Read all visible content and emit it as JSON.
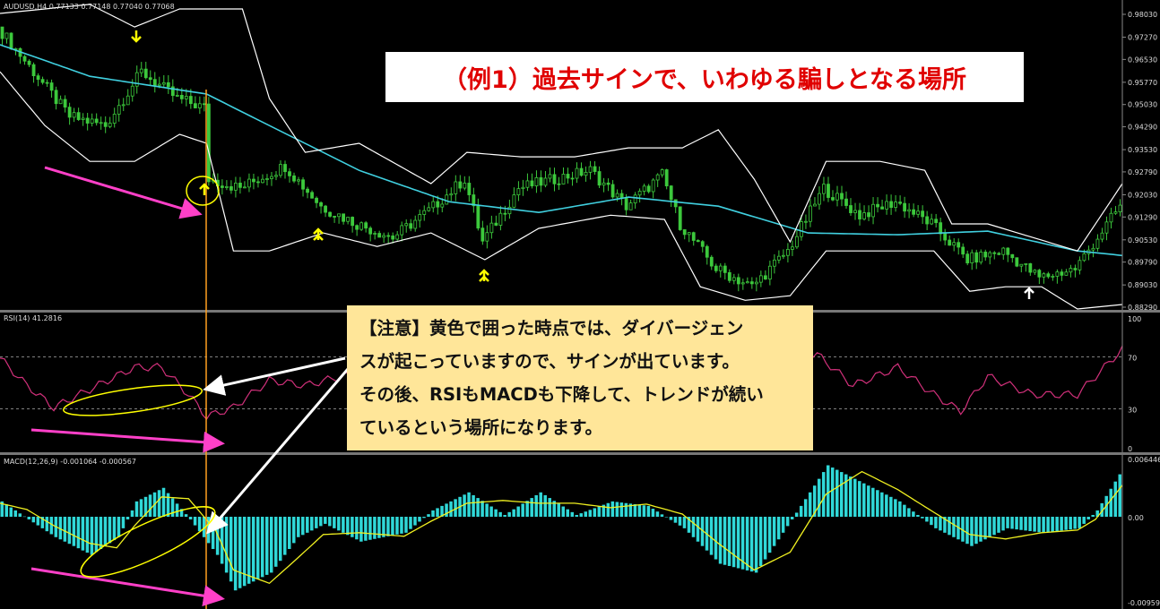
{
  "header": {
    "symbol_info": "AUDUSD,H4  0.77133 0.77148 0.77040 0.77068"
  },
  "rsi_label": "RSI(14) 41.2816",
  "macd_label": "MACD(12,26,9) -0.001064 -0.000567",
  "title_annotation": "（例1）過去サインで、いわゆる騙しとなる場所",
  "note_annotation": {
    "lines": [
      "【注意】黄色で囲った時点では、ダイバージェン",
      "スが起こっていますので、サインが出ています。",
      "その後、RSIもMACDも下降して、トレンドが続い",
      "ているという場所になります。"
    ]
  },
  "colors": {
    "background": "#000000",
    "candle": "#3cc83c",
    "bollinger": "#ffffff",
    "moving_average": "#40d0e0",
    "rsi_line": "#d0307a",
    "macd_histogram": "#30d8d8",
    "macd_signal": "#f0f020",
    "annotation_arrow_pink": "#ff40c8",
    "signal_arrow_yellow": "#ffff00",
    "vertical_marker": "#ffa020",
    "title_text": "#e00000",
    "note_background": "#ffe699"
  },
  "chart_data": [
    {
      "type": "line",
      "pane": "price",
      "xlabel": "",
      "ylabel": "",
      "x_unit": "bar index",
      "ylim": [
        0.8829,
        0.9803
      ],
      "yticks": [
        "0.98030",
        "0.97270",
        "0.96530",
        "0.95770",
        "0.95030",
        "0.94290",
        "0.93530",
        "0.92790",
        "0.92030",
        "0.91290",
        "0.90530",
        "0.89790",
        "0.89030",
        "0.88290"
      ],
      "series": [
        {
          "role": "close",
          "x": [
            0,
            8,
            16,
            24,
            32,
            40,
            46,
            47,
            54,
            64,
            72,
            80,
            88,
            96,
            104,
            108,
            116,
            124,
            132,
            140,
            148,
            152,
            160,
            168,
            176,
            184,
            192,
            200,
            208,
            216,
            224,
            232,
            240,
            250
          ],
          "y": [
            0.9761,
            0.9612,
            0.9463,
            0.9433,
            0.9612,
            0.9523,
            0.9493,
            0.9255,
            0.9225,
            0.9299,
            0.9165,
            0.9106,
            0.9061,
            0.915,
            0.9255,
            0.9046,
            0.9225,
            0.9255,
            0.9284,
            0.9165,
            0.9269,
            0.9106,
            0.8957,
            0.8897,
            0.9016,
            0.9225,
            0.9135,
            0.918,
            0.9106,
            0.8987,
            0.9016,
            0.8927,
            0.8957,
            0.9165
          ]
        },
        {
          "role": "moving-average",
          "x": [
            0,
            20,
            46,
            60,
            80,
            100,
            120,
            140,
            160,
            180,
            200,
            220,
            240,
            250
          ],
          "y": [
            0.9702,
            0.9597,
            0.9538,
            0.9433,
            0.9284,
            0.918,
            0.9144,
            0.9195,
            0.9165,
            0.9076,
            0.907,
            0.9082,
            0.9016,
            0.9001
          ]
        },
        {
          "role": "bollinger-upper",
          "x": [
            0,
            20,
            30,
            40,
            54,
            60,
            68,
            80,
            96,
            104,
            116,
            128,
            140,
            152,
            160,
            168,
            176,
            184,
            196,
            206,
            212,
            220,
            230,
            240,
            250
          ],
          "y": [
            0.9806,
            0.9836,
            0.9761,
            0.9821,
            0.9821,
            0.9523,
            0.9344,
            0.9374,
            0.924,
            0.9344,
            0.9329,
            0.9329,
            0.9359,
            0.9359,
            0.9419,
            0.9255,
            0.9046,
            0.9314,
            0.9314,
            0.9284,
            0.9106,
            0.9106,
            0.9061,
            0.9016,
            0.924
          ]
        },
        {
          "role": "bollinger-lower",
          "x": [
            0,
            10,
            20,
            30,
            40,
            46,
            52,
            60,
            72,
            84,
            96,
            108,
            120,
            136,
            148,
            156,
            166,
            176,
            184,
            196,
            208,
            216,
            224,
            232,
            240,
            250
          ],
          "y": [
            0.9612,
            0.9433,
            0.9314,
            0.9314,
            0.9404,
            0.9374,
            0.9016,
            0.9016,
            0.9076,
            0.9031,
            0.9076,
            0.8987,
            0.9091,
            0.9135,
            0.9121,
            0.8897,
            0.8852,
            0.8867,
            0.9016,
            0.9016,
            0.9016,
            0.8882,
            0.8897,
            0.8897,
            0.8823,
            0.8838
          ]
        }
      ]
    },
    {
      "type": "line",
      "pane": "rsi",
      "ylim": [
        0,
        100
      ],
      "yticks": [
        "100",
        "70",
        "30",
        "0"
      ],
      "levels": [
        70,
        30
      ],
      "x": [
        0,
        6,
        12,
        20,
        30,
        36,
        42,
        46,
        52,
        60,
        68,
        76,
        182,
        190,
        200,
        208,
        214,
        220,
        230,
        240,
        246,
        250
      ],
      "y": [
        69,
        48,
        31,
        45,
        62,
        62,
        41,
        24,
        31,
        52,
        48,
        55,
        72,
        48,
        62,
        41,
        28,
        55,
        41,
        41,
        62,
        76
      ]
    },
    {
      "type": "bar",
      "pane": "macd",
      "ylim": [
        -0.00959,
        0.006446
      ],
      "yticks": [
        "0.006446",
        "0.00",
        "-0.00959"
      ],
      "x": [
        0,
        6,
        12,
        20,
        26,
        30,
        36,
        42,
        48,
        52,
        60,
        66,
        72,
        80,
        90,
        96,
        104,
        112,
        120,
        128,
        136,
        144,
        152,
        160,
        168,
        176,
        184,
        192,
        200,
        208,
        216,
        224,
        232,
        240,
        244,
        250
      ],
      "histogram": [
        0.0017,
        -0.0003,
        -0.0023,
        -0.0043,
        -0.0023,
        0.0017,
        0.0032,
        -0.0003,
        -0.0043,
        -0.0083,
        -0.0063,
        -0.0023,
        -0.0008,
        -0.0028,
        -0.0018,
        0.0007,
        0.0027,
        0.0002,
        0.0027,
        0.0002,
        0.0017,
        0.0012,
        -0.0013,
        -0.0053,
        -0.0063,
        -0.0003,
        0.0057,
        0.0037,
        0.0017,
        -0.0013,
        -0.0033,
        -0.0013,
        -0.0018,
        -0.0013,
        0.0007,
        0.0055
      ],
      "signal": [
        0.0015,
        0.0008,
        -0.001,
        -0.003,
        -0.0035,
        -0.001,
        0.0022,
        0.002,
        -0.0015,
        -0.006,
        -0.0075,
        -0.0048,
        -0.002,
        -0.0018,
        -0.0022,
        -0.0005,
        0.0015,
        0.0018,
        0.0015,
        0.0015,
        0.001,
        0.0014,
        0.0003,
        -0.003,
        -0.006,
        -0.004,
        0.0025,
        0.005,
        0.003,
        0.0005,
        -0.002,
        -0.0025,
        -0.0018,
        -0.0015,
        -0.0003,
        0.0035
      ]
    }
  ]
}
